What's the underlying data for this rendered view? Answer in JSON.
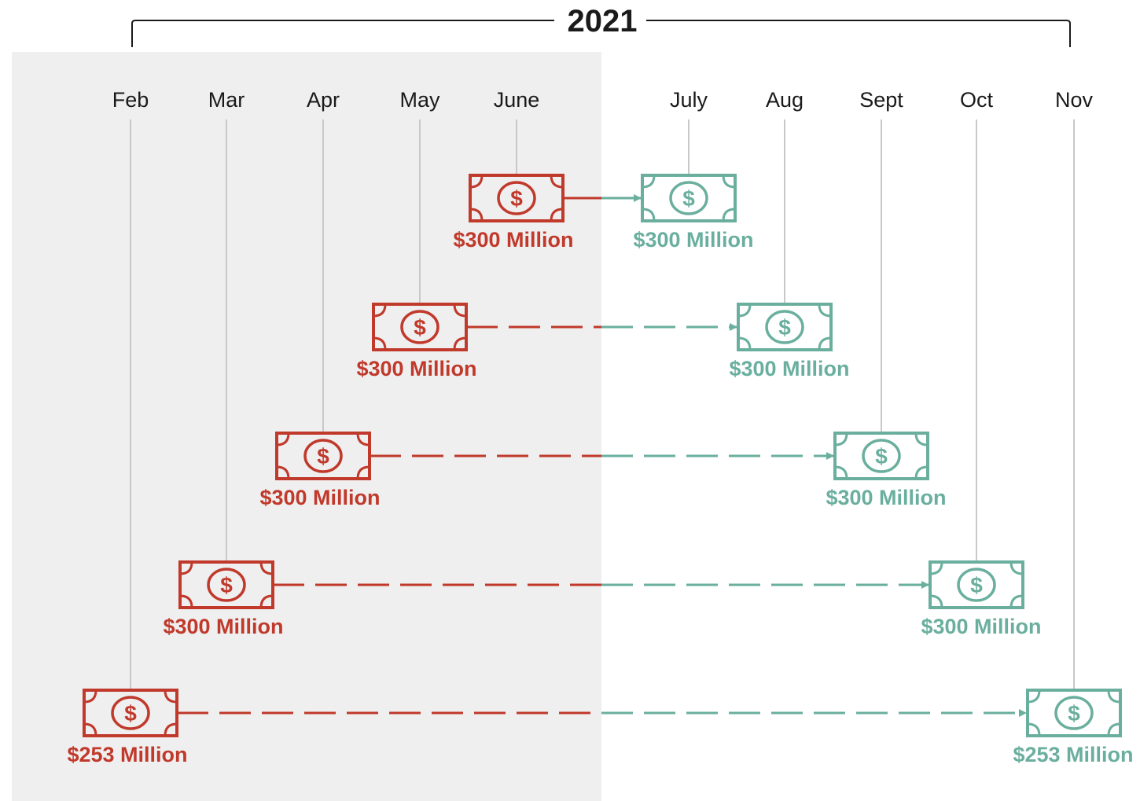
{
  "year": "2021",
  "colors": {
    "shade": "#efefef",
    "bracket": "#1a1a1a",
    "red": "#c0392b",
    "teal": "#6aaf9e",
    "guide": "#c8c8c8",
    "text": "#1a1a1a"
  },
  "months": [
    "Feb",
    "Mar",
    "Apr",
    "May",
    "June",
    "July",
    "Aug",
    "Sept",
    "Oct",
    "Nov"
  ],
  "icons": {
    "bill": "dollar-bill-icon",
    "arrow": "arrow-right-icon"
  },
  "transfers": [
    {
      "from": "June",
      "to": "July",
      "from_amount": "$300 Million",
      "to_amount": "$300 Million"
    },
    {
      "from": "May",
      "to": "Aug",
      "from_amount": "$300 Million",
      "to_amount": "$300 Million"
    },
    {
      "from": "Apr",
      "to": "Sept",
      "from_amount": "$300 Million",
      "to_amount": "$300 Million"
    },
    {
      "from": "Mar",
      "to": "Oct",
      "from_amount": "$300 Million",
      "to_amount": "$300 Million"
    },
    {
      "from": "Feb",
      "to": "Nov",
      "from_amount": "$253 Million",
      "to_amount": "$253 Million"
    }
  ]
}
